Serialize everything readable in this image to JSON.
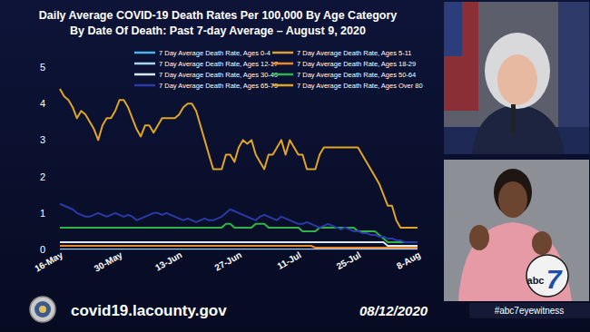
{
  "chart_data": {
    "type": "line",
    "title": "Daily Average COVID-19 Death Rates Per 100,000 By Age Category",
    "subtitle": "By Date Of Death: Past 7-day Average – August 9, 2020",
    "categories": [
      "16-May",
      null,
      null,
      null,
      null,
      null,
      null,
      null,
      null,
      null,
      null,
      null,
      null,
      null,
      "30-May",
      null,
      null,
      null,
      null,
      null,
      null,
      null,
      null,
      null,
      null,
      null,
      null,
      null,
      "13-Jun",
      null,
      null,
      null,
      null,
      null,
      null,
      null,
      null,
      null,
      null,
      null,
      null,
      null,
      "27-Jun",
      null,
      null,
      null,
      null,
      null,
      null,
      null,
      null,
      null,
      null,
      null,
      null,
      null,
      "11-Jul",
      null,
      null,
      null,
      null,
      null,
      null,
      null,
      null,
      null,
      null,
      null,
      null,
      null,
      "25-Jul",
      null,
      null,
      null,
      null,
      null,
      null,
      null,
      null,
      null,
      null,
      null,
      null,
      null,
      "8-Aug"
    ],
    "series": [
      {
        "name": "7 Day Average Death Rate, Ages 0-4",
        "color": "#4fb3e8",
        "values": [
          0,
          0,
          0,
          0,
          0,
          0,
          0,
          0,
          0,
          0,
          0,
          0,
          0,
          0,
          0,
          0,
          0,
          0,
          0,
          0,
          0,
          0,
          0,
          0,
          0,
          0,
          0,
          0,
          0,
          0,
          0,
          0,
          0,
          0,
          0,
          0,
          0,
          0,
          0,
          0,
          0,
          0,
          0,
          0,
          0,
          0,
          0,
          0,
          0,
          0,
          0,
          0,
          0,
          0,
          0,
          0,
          0,
          0,
          0,
          0,
          0,
          0,
          0,
          0,
          0,
          0,
          0,
          0,
          0,
          0,
          0,
          0,
          0,
          0,
          0,
          0,
          0,
          0,
          0,
          0,
          0,
          0,
          0,
          0,
          0
        ]
      },
      {
        "name": "7 Day Average Death Rate, Ages 5-11",
        "color": "#d9a03a",
        "values": [
          0,
          0,
          0,
          0,
          0,
          0,
          0,
          0,
          0,
          0,
          0,
          0,
          0,
          0,
          0,
          0,
          0,
          0,
          0,
          0,
          0,
          0,
          0,
          0,
          0,
          0,
          0,
          0,
          0,
          0,
          0,
          0,
          0,
          0,
          0,
          0,
          0,
          0,
          0,
          0,
          0,
          0,
          0,
          0,
          0,
          0,
          0,
          0,
          0,
          0,
          0,
          0,
          0,
          0,
          0,
          0,
          0,
          0,
          0,
          0,
          0,
          0,
          0,
          0,
          0,
          0,
          0,
          0,
          0,
          0,
          0,
          0,
          0,
          0,
          0,
          0,
          0,
          0,
          0,
          0,
          0,
          0,
          0,
          0,
          0
        ]
      },
      {
        "name": "7 Day Average Death Rate, Ages 12-17",
        "color": "#a9d6f0",
        "values": [
          0,
          0,
          0,
          0,
          0,
          0,
          0,
          0,
          0,
          0,
          0,
          0,
          0,
          0,
          0,
          0,
          0,
          0,
          0,
          0,
          0,
          0,
          0,
          0,
          0,
          0,
          0,
          0,
          0,
          0,
          0,
          0,
          0,
          0,
          0,
          0,
          0,
          0,
          0,
          0,
          0,
          0,
          0,
          0,
          0,
          0,
          0,
          0,
          0,
          0,
          0,
          0,
          0,
          0,
          0,
          0,
          0,
          0,
          0,
          0,
          0,
          0,
          0,
          0,
          0,
          0,
          0,
          0,
          0,
          0,
          0,
          0,
          0,
          0,
          0,
          0,
          0,
          0,
          0,
          0,
          0,
          0,
          0,
          0,
          0
        ]
      },
      {
        "name": "7 Day Average Death Rate, Ages 18-29",
        "color": "#e88a2c",
        "values": [
          0.1,
          0.1,
          0.1,
          0.1,
          0.1,
          0.1,
          0.1,
          0.1,
          0.1,
          0.1,
          0.1,
          0.1,
          0.1,
          0.1,
          0.1,
          0.1,
          0.1,
          0.1,
          0.1,
          0.1,
          0.1,
          0.1,
          0.1,
          0.1,
          0.1,
          0.1,
          0.1,
          0.1,
          0.1,
          0.1,
          0.1,
          0.1,
          0.1,
          0.1,
          0.1,
          0.1,
          0.1,
          0.1,
          0.1,
          0.1,
          0.1,
          0.1,
          0.1,
          0.1,
          0.1,
          0.1,
          0.1,
          0.1,
          0.1,
          0.1,
          0.1,
          0.1,
          0.1,
          0.1,
          0.1,
          0.1,
          0.1,
          0.1,
          0.1,
          0.1,
          0.05,
          0.05,
          0.05,
          0.05,
          0.05,
          0.05,
          0.05,
          0.05,
          0.05,
          0.05,
          0.05,
          0.05,
          0.05,
          0.05,
          0.05,
          0.05,
          0.05,
          0.05,
          0.05,
          0.05,
          0.05,
          0.05,
          0.05,
          0.05,
          0.05
        ]
      },
      {
        "name": "7 Day Average Death Rate, Ages 30-49",
        "color": "#d8e8f6",
        "values": [
          0.2,
          0.2,
          0.2,
          0.2,
          0.2,
          0.2,
          0.2,
          0.2,
          0.2,
          0.2,
          0.2,
          0.2,
          0.2,
          0.2,
          0.2,
          0.2,
          0.2,
          0.2,
          0.2,
          0.2,
          0.2,
          0.2,
          0.2,
          0.2,
          0.2,
          0.2,
          0.2,
          0.2,
          0.2,
          0.2,
          0.2,
          0.2,
          0.2,
          0.2,
          0.2,
          0.2,
          0.2,
          0.2,
          0.2,
          0.2,
          0.2,
          0.2,
          0.2,
          0.2,
          0.2,
          0.2,
          0.2,
          0.2,
          0.2,
          0.2,
          0.2,
          0.2,
          0.2,
          0.2,
          0.2,
          0.2,
          0.2,
          0.2,
          0.2,
          0.2,
          0.2,
          0.2,
          0.2,
          0.2,
          0.2,
          0.2,
          0.2,
          0.2,
          0.2,
          0.2,
          0.2,
          0.2,
          0.2,
          0.2,
          0.2,
          0.2,
          0.2,
          0.1,
          0.1,
          0.1,
          0.1,
          0.1,
          0.1,
          0.1,
          0.1
        ]
      },
      {
        "name": "7 Day Average Death Rate, Ages 50-64",
        "color": "#2fb34a",
        "values": [
          0.6,
          0.6,
          0.6,
          0.6,
          0.6,
          0.6,
          0.6,
          0.6,
          0.6,
          0.6,
          0.6,
          0.6,
          0.6,
          0.6,
          0.6,
          0.6,
          0.6,
          0.6,
          0.6,
          0.6,
          0.6,
          0.6,
          0.6,
          0.6,
          0.6,
          0.6,
          0.6,
          0.6,
          0.6,
          0.6,
          0.6,
          0.6,
          0.6,
          0.6,
          0.6,
          0.6,
          0.6,
          0.6,
          0.6,
          0.7,
          0.7,
          0.6,
          0.6,
          0.6,
          0.6,
          0.6,
          0.7,
          0.7,
          0.7,
          0.6,
          0.6,
          0.6,
          0.6,
          0.6,
          0.6,
          0.6,
          0.6,
          0.5,
          0.5,
          0.5,
          0.5,
          0.6,
          0.6,
          0.6,
          0.6,
          0.6,
          0.6,
          0.6,
          0.6,
          0.6,
          0.5,
          0.5,
          0.5,
          0.5,
          0.5,
          0.4,
          0.3,
          0.2,
          0.2,
          0.2,
          0.2,
          0.2,
          0.2,
          0.2,
          0.2
        ]
      },
      {
        "name": "7 Day Average Death Rate, Ages 65-79",
        "color": "#2a3aa8",
        "values": [
          1.25,
          1.2,
          1.15,
          1.1,
          1.0,
          0.95,
          0.9,
          0.9,
          0.95,
          1.0,
          0.95,
          0.9,
          0.95,
          1.0,
          0.95,
          0.9,
          0.95,
          0.9,
          0.8,
          0.85,
          0.9,
          0.95,
          1.0,
          1.0,
          0.95,
          1.0,
          0.95,
          0.9,
          0.85,
          0.8,
          0.85,
          0.8,
          0.75,
          0.8,
          0.85,
          0.8,
          0.8,
          0.85,
          0.9,
          1.0,
          1.1,
          1.05,
          1.0,
          0.95,
          0.9,
          0.85,
          0.8,
          0.9,
          0.95,
          0.9,
          0.85,
          0.8,
          0.9,
          0.85,
          0.8,
          0.75,
          0.7,
          0.7,
          0.75,
          0.7,
          0.65,
          0.6,
          0.65,
          0.7,
          0.65,
          0.6,
          0.55,
          0.6,
          0.55,
          0.5,
          0.5,
          0.45,
          0.45,
          0.4,
          0.4,
          0.35,
          0.35,
          0.3,
          0.3,
          0.25,
          0.25,
          0.2,
          0.2,
          0.2,
          0.2
        ]
      },
      {
        "name": "7 Day Average Death Rate, Ages Over 80",
        "color": "#e0a526",
        "values": [
          4.4,
          4.2,
          4.1,
          3.9,
          3.6,
          3.8,
          3.7,
          3.5,
          3.3,
          3.0,
          3.4,
          3.6,
          3.6,
          3.8,
          4.1,
          4.1,
          3.9,
          3.6,
          3.3,
          3.1,
          3.4,
          3.4,
          3.2,
          3.4,
          3.6,
          3.6,
          3.6,
          3.6,
          3.7,
          3.9,
          4.0,
          4.0,
          3.8,
          3.4,
          3.0,
          2.6,
          2.2,
          2.2,
          2.2,
          2.6,
          2.6,
          2.4,
          2.8,
          3.0,
          2.9,
          3.0,
          2.6,
          2.4,
          2.2,
          2.6,
          2.6,
          2.8,
          3.0,
          2.6,
          3.0,
          2.8,
          2.6,
          2.6,
          2.2,
          2.2,
          2.2,
          2.6,
          2.8,
          2.8,
          2.8,
          2.8,
          2.8,
          2.8,
          2.8,
          2.8,
          2.8,
          2.6,
          2.4,
          2.2,
          2.0,
          1.8,
          1.5,
          1.2,
          1.2,
          0.8,
          0.6,
          0.6,
          0.6,
          0.6,
          0.6
        ]
      }
    ],
    "ylim": [
      0,
      5
    ],
    "yticks": [
      0,
      1,
      2,
      3,
      4,
      5
    ],
    "grid": false,
    "legend": "top"
  },
  "page": {
    "website": "covid19.lacounty.gov",
    "date": "08/12/2020",
    "logo": "abc",
    "logo_number": "7",
    "hashtag": "#abc7eyewitness"
  }
}
